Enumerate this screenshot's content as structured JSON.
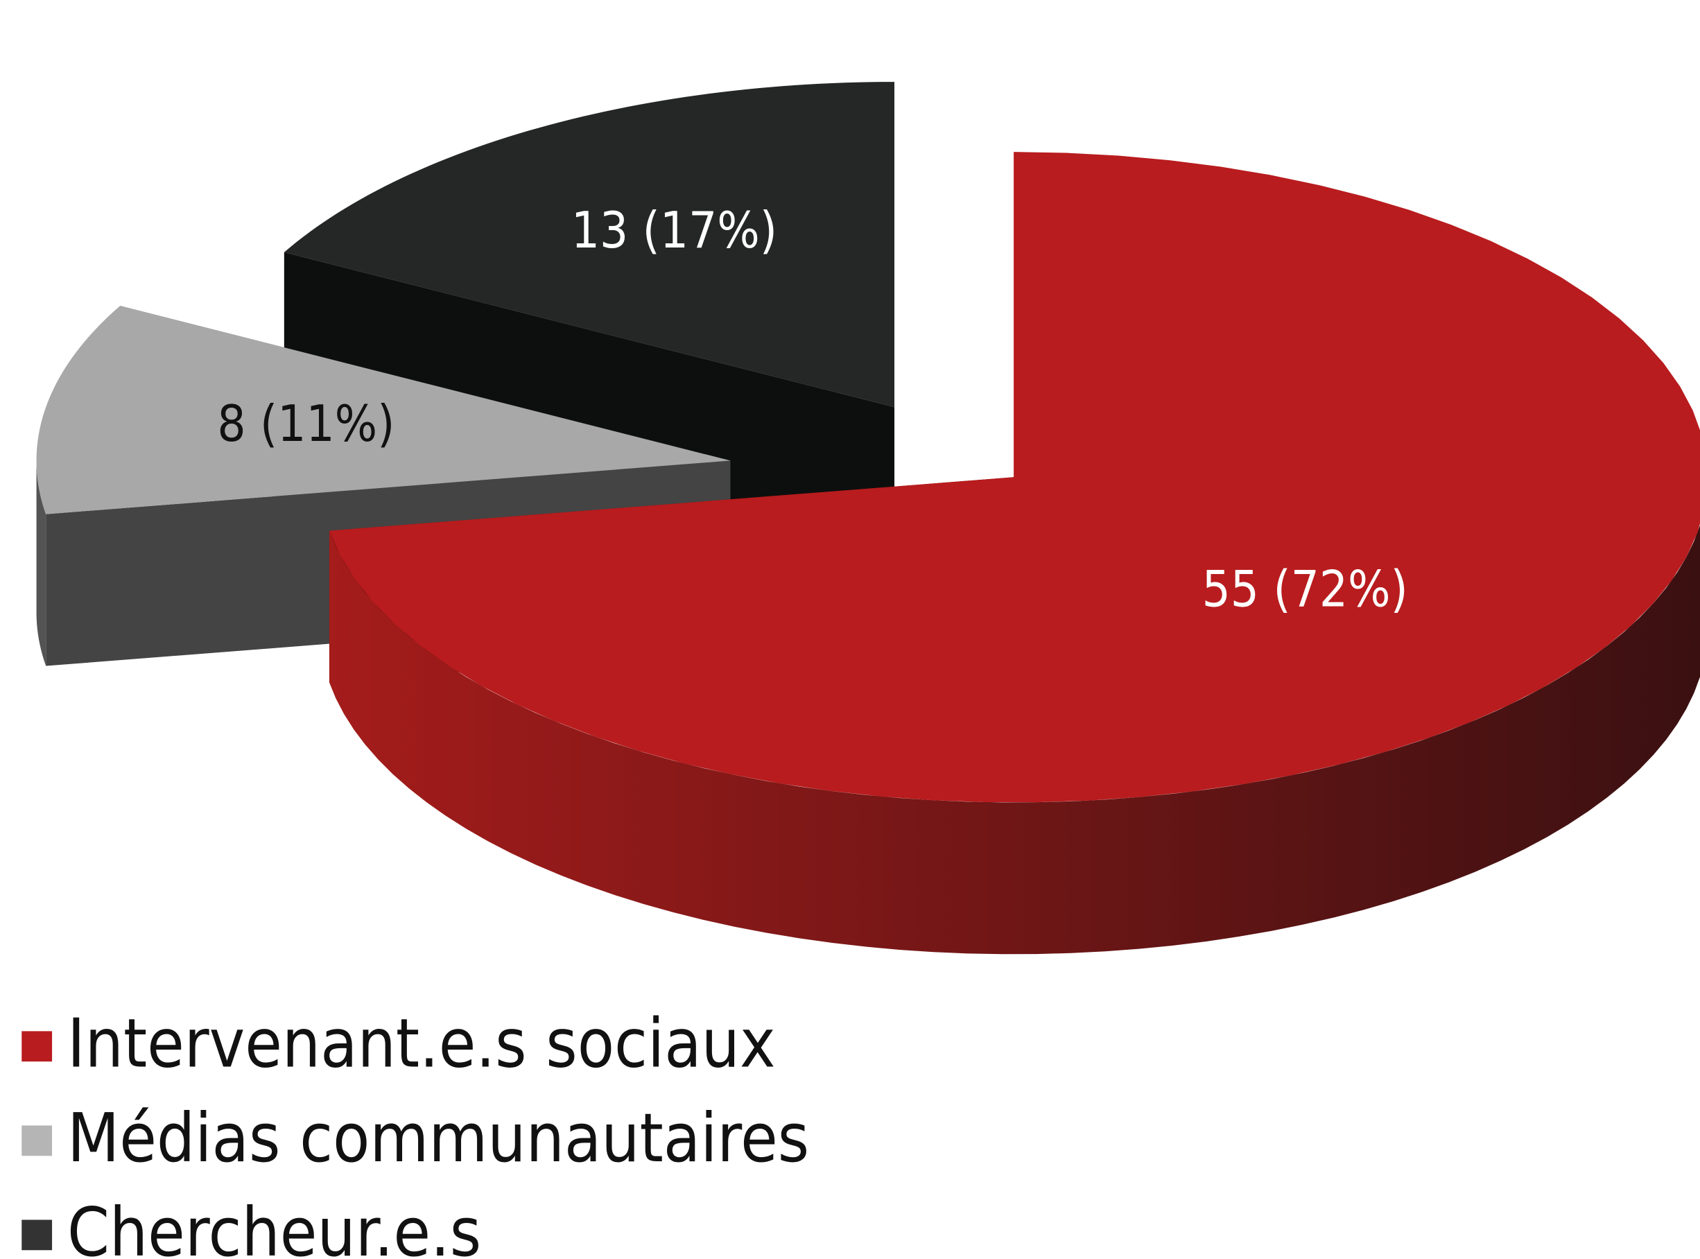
{
  "chart_data": {
    "type": "pie",
    "categories": [
      "Intervenant.e.s sociaux",
      "Médias communautaires",
      "Chercheur.e.s"
    ],
    "values": [
      55,
      8,
      13
    ],
    "value_labels": [
      "55 (72%)",
      "8 (11%)",
      "13 (17%)"
    ],
    "colors": [
      "#b81c1e",
      "#a8a8a8",
      "#252626"
    ],
    "legend": "bottom-left"
  }
}
